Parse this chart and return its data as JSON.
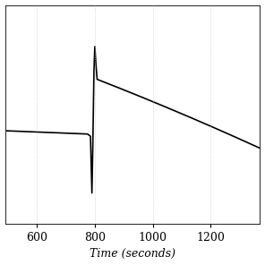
{
  "background_color": "#ffffff",
  "line_color": "#000000",
  "grid_color": "#cccccc",
  "xlabel": "Time (seconds)",
  "xlabel_fontsize": 9,
  "xlim": [
    490,
    1370
  ],
  "ylim": [
    -0.9,
    1.1
  ],
  "xticks": [
    600,
    800,
    1000,
    1200
  ],
  "figsize": [
    2.96,
    2.96
  ],
  "dpi": 100,
  "line_width": 1.2,
  "spine_color": "#333333",
  "tick_labelsize": 9
}
